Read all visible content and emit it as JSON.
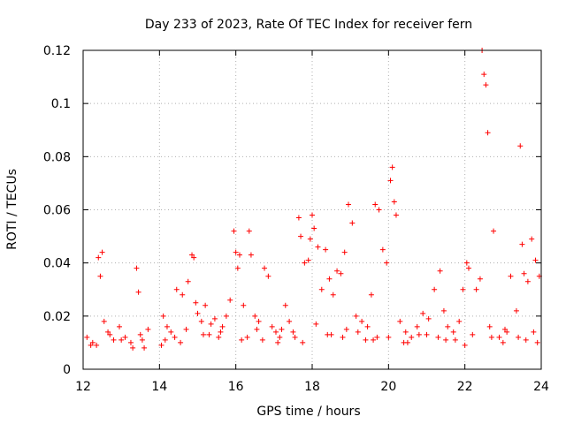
{
  "chart_data": {
    "type": "scatter",
    "title": "Day 233 of 2023, Rate Of TEC Index for receiver fern",
    "xlabel": "GPS time / hours",
    "ylabel": "ROTI / TECUs",
    "xlim": [
      12,
      24
    ],
    "ylim": [
      0,
      0.12
    ],
    "x_ticks": [
      "12",
      "14",
      "16",
      "18",
      "20",
      "22",
      "24"
    ],
    "y_ticks": [
      "0",
      "0.02",
      "0.04",
      "0.06",
      "0.08",
      "0.1",
      "0.12"
    ],
    "grid": true,
    "legend": "none",
    "marker": "plus",
    "color": "#ff0000",
    "series": [
      {
        "x": [
          12.1,
          12.25,
          12.4,
          12.45,
          12.5,
          12.55,
          12.65,
          12.8,
          12.95,
          13.1,
          13.25,
          13.4,
          13.45,
          13.5,
          13.55,
          13.7,
          14.05,
          14.1,
          14.2,
          14.3,
          14.45,
          14.6,
          14.75,
          14.85,
          14.9,
          14.95,
          15.0,
          15.1,
          15.2,
          15.35,
          15.45,
          15.6,
          15.75,
          15.85,
          15.95,
          16.0,
          16.05,
          16.1,
          16.2,
          16.35,
          16.4,
          16.5,
          16.6,
          16.75,
          16.85,
          16.95,
          17.05,
          17.2,
          17.3,
          17.4,
          17.55,
          17.65,
          17.7,
          17.8,
          17.9,
          17.95,
          18.0,
          18.05,
          18.15,
          18.25,
          18.35,
          18.45,
          18.55,
          18.65,
          18.75,
          18.85,
          18.95,
          19.05,
          19.15,
          19.3,
          19.45,
          19.55,
          19.65,
          19.75,
          19.85,
          19.95,
          20.05,
          20.1,
          20.15,
          20.2,
          20.3,
          20.45,
          20.6,
          20.75,
          20.9,
          21.05,
          21.2,
          21.35,
          21.45,
          21.55,
          21.7,
          21.85,
          21.95,
          22.05,
          22.1,
          22.3,
          22.4,
          22.45,
          22.5,
          22.55,
          22.6,
          22.75,
          22.9,
          23.05,
          23.2,
          23.35,
          23.45,
          23.5,
          23.55,
          23.65,
          23.75,
          23.85,
          23.95,
          12.2,
          12.7,
          13.0,
          13.3,
          14.4,
          14.7,
          15.3,
          15.65,
          16.3,
          16.7,
          17.1,
          17.5,
          18.1,
          18.5,
          18.9,
          19.4,
          19.7,
          20.4,
          20.8,
          21.3,
          21.75,
          22.2,
          22.65,
          23.0,
          23.4,
          23.8,
          12.35,
          13.6,
          14.15,
          14.55,
          15.15,
          15.55,
          16.15,
          16.55,
          17.15,
          17.75,
          18.4,
          18.8,
          19.2,
          19.6,
          20.0,
          20.5,
          21.0,
          21.5,
          22.0,
          22.7,
          23.1,
          23.6,
          23.9
        ],
        "y": [
          0.012,
          0.01,
          0.042,
          0.035,
          0.044,
          0.018,
          0.014,
          0.011,
          0.016,
          0.012,
          0.01,
          0.038,
          0.029,
          0.013,
          0.011,
          0.015,
          0.009,
          0.02,
          0.016,
          0.014,
          0.03,
          0.028,
          0.033,
          0.043,
          0.042,
          0.025,
          0.021,
          0.018,
          0.024,
          0.017,
          0.019,
          0.014,
          0.02,
          0.026,
          0.052,
          0.044,
          0.038,
          0.043,
          0.024,
          0.052,
          0.043,
          0.02,
          0.018,
          0.038,
          0.035,
          0.016,
          0.014,
          0.015,
          0.024,
          0.018,
          0.012,
          0.057,
          0.05,
          0.04,
          0.041,
          0.049,
          0.058,
          0.053,
          0.046,
          0.03,
          0.045,
          0.034,
          0.028,
          0.037,
          0.036,
          0.044,
          0.062,
          0.055,
          0.02,
          0.018,
          0.016,
          0.028,
          0.062,
          0.06,
          0.045,
          0.04,
          0.071,
          0.076,
          0.063,
          0.058,
          0.018,
          0.014,
          0.012,
          0.016,
          0.021,
          0.019,
          0.03,
          0.037,
          0.022,
          0.016,
          0.014,
          0.018,
          0.03,
          0.04,
          0.038,
          0.03,
          0.034,
          0.12,
          0.111,
          0.107,
          0.089,
          0.052,
          0.012,
          0.015,
          0.035,
          0.022,
          0.084,
          0.047,
          0.036,
          0.033,
          0.049,
          0.041,
          0.035,
          0.009,
          0.013,
          0.011,
          0.008,
          0.012,
          0.015,
          0.013,
          0.016,
          0.012,
          0.011,
          0.01,
          0.014,
          0.017,
          0.013,
          0.015,
          0.011,
          0.012,
          0.01,
          0.013,
          0.012,
          0.011,
          0.013,
          0.016,
          0.01,
          0.012,
          0.014,
          0.009,
          0.008,
          0.011,
          0.01,
          0.013,
          0.012,
          0.011,
          0.015,
          0.012,
          0.01,
          0.013,
          0.012,
          0.014,
          0.011,
          0.012,
          0.01,
          0.013,
          0.011,
          0.009,
          0.012,
          0.014,
          0.011,
          0.01
        ]
      }
    ]
  }
}
